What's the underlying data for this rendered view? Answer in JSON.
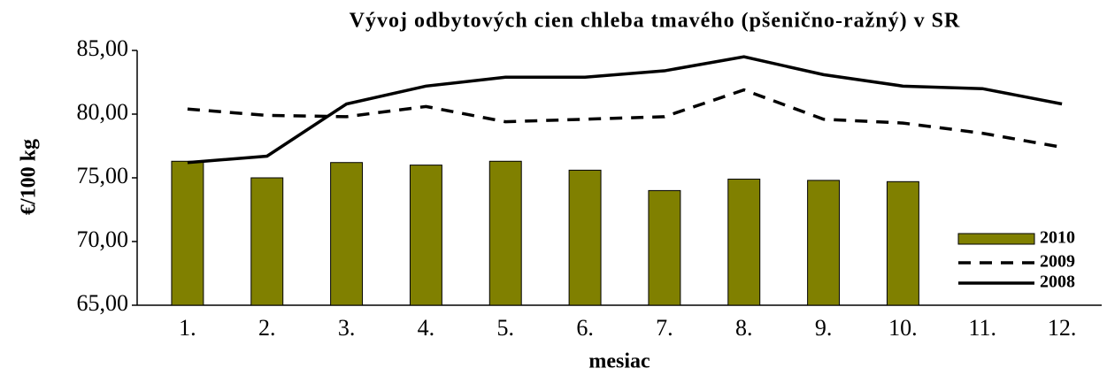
{
  "chart_data": {
    "type": "bar",
    "title": "Vývoj odbytových cien chleba tmavého (pšenično-ražný)  v SR",
    "x_label": "mesiac",
    "y_label": "€/100 kg",
    "categories": [
      "1.",
      "2.",
      "3.",
      "4.",
      "5.",
      "6.",
      "7.",
      "8.",
      "9.",
      "10.",
      "11.",
      "12."
    ],
    "series": [
      {
        "name": "2010",
        "type": "bar",
        "color": "#808000",
        "values": [
          76.3,
          75.0,
          76.2,
          76.0,
          76.3,
          75.6,
          74.0,
          74.9,
          74.8,
          74.7,
          null,
          null
        ]
      },
      {
        "name": "2009",
        "type": "line",
        "dash": true,
        "color": "#000000",
        "values": [
          80.4,
          79.9,
          79.8,
          80.6,
          79.4,
          79.6,
          79.8,
          81.9,
          79.6,
          79.3,
          78.5,
          77.4
        ]
      },
      {
        "name": "2008",
        "type": "line",
        "dash": false,
        "color": "#000000",
        "values": [
          76.2,
          76.7,
          80.8,
          82.2,
          82.9,
          82.9,
          83.4,
          84.5,
          83.1,
          82.2,
          82.0,
          80.8
        ]
      }
    ],
    "ylim": [
      65,
      85
    ],
    "yticks": [
      {
        "value": 65,
        "label": "65,00"
      },
      {
        "value": 70,
        "label": "70,00"
      },
      {
        "value": 75,
        "label": "75,00"
      },
      {
        "value": 80,
        "label": "80,00"
      },
      {
        "value": 85,
        "label": "85,00"
      }
    ],
    "legend": "right"
  }
}
